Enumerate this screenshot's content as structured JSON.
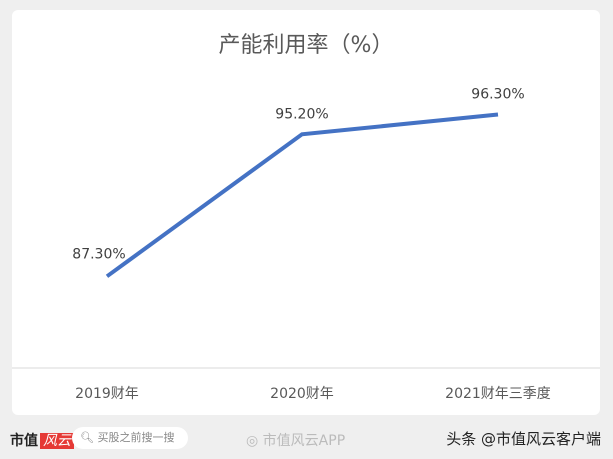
{
  "chart_data": {
    "type": "line",
    "title": "产能利用率（%）",
    "categories": [
      "2019财年",
      "2020财年",
      "2021财年三季度"
    ],
    "values": [
      87.3,
      95.2,
      96.3
    ],
    "data_labels": [
      "87.30%",
      "95.20%",
      "96.30%"
    ],
    "ylim": [
      82.2,
      100
    ],
    "grid": false,
    "line_color": "#4472c4"
  },
  "footer": {
    "logo_text": "市值",
    "logo_red": "风云",
    "search_placeholder": "买股之前搜一搜",
    "watermark": "市值风云APP",
    "source": "头条 @市值风云客户端"
  }
}
